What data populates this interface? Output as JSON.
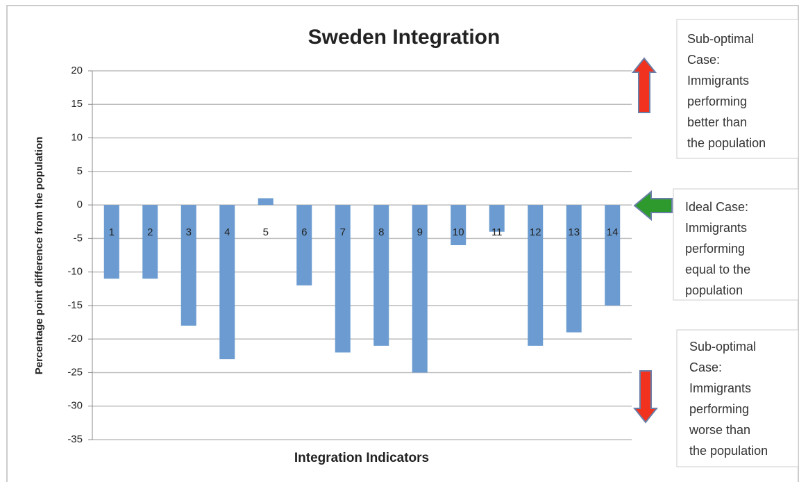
{
  "chart_data": {
    "type": "bar",
    "title": "Sweden Integration",
    "x_label": "Integration Indicators",
    "y_label": "Percentage point difference from the population",
    "categories": [
      "1",
      "2",
      "3",
      "4",
      "5",
      "6",
      "7",
      "8",
      "9",
      "10",
      "11",
      "12",
      "13",
      "14"
    ],
    "values": [
      -11,
      -11,
      -18,
      -23,
      1,
      -12,
      -22,
      -21,
      -25,
      -6,
      -4,
      -21,
      -19,
      -15
    ],
    "color": "#6b9bd0",
    "ylim": [
      -35,
      20
    ],
    "yticks": [
      20,
      15,
      10,
      5,
      0,
      -5,
      -10,
      -15,
      -20,
      -25,
      -30,
      -35
    ],
    "grid": true,
    "annotations": [
      {
        "lines": [
          "Sub-optimal",
          "Case:",
          "Immigrants",
          "performing",
          "better than",
          "the population"
        ]
      },
      {
        "lines": [
          "Ideal Case:",
          "Immigrants",
          "performing",
          "equal to the",
          "population"
        ]
      },
      {
        "lines": [
          "Sub-optimal",
          "Case:",
          "Immigrants",
          "performing",
          "worse than",
          "the population"
        ]
      }
    ]
  }
}
